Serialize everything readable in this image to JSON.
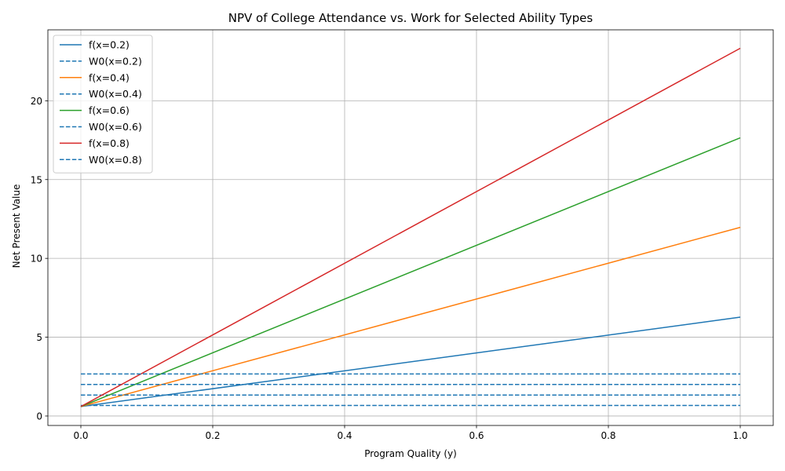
{
  "chart_data": {
    "type": "line",
    "title": "NPV of College Attendance vs. Work for Selected Ability Types",
    "xlabel": "Program Quality (y)",
    "ylabel": "Net Present Value",
    "xlim": [
      -0.05,
      1.05
    ],
    "ylim": [
      -0.6,
      24.5
    ],
    "xticks": [
      0.0,
      0.2,
      0.4,
      0.6,
      0.8,
      1.0
    ],
    "xtick_labels": [
      "0.0",
      "0.2",
      "0.4",
      "0.6",
      "0.8",
      "1.0"
    ],
    "yticks": [
      0,
      5,
      10,
      15,
      20
    ],
    "ytick_labels": [
      "0",
      "5",
      "10",
      "15",
      "20"
    ],
    "grid": true,
    "legend_position": "top-left",
    "series": [
      {
        "name": "f(x=0.2)",
        "style": "solid",
        "color": "#1f77b4",
        "x": [
          0.0,
          1.0
        ],
        "y": [
          0.6,
          6.27
        ]
      },
      {
        "name": "W0(x=0.2)",
        "style": "dashed",
        "color": "#1f77b4",
        "x": [
          0.0,
          1.0
        ],
        "y": [
          0.67,
          0.67
        ]
      },
      {
        "name": "f(x=0.4)",
        "style": "solid",
        "color": "#ff7f0e",
        "x": [
          0.0,
          1.0
        ],
        "y": [
          0.6,
          11.97
        ]
      },
      {
        "name": "W0(x=0.4)",
        "style": "dashed",
        "color": "#1f77b4",
        "x": [
          0.0,
          1.0
        ],
        "y": [
          1.33,
          1.33
        ]
      },
      {
        "name": "f(x=0.6)",
        "style": "solid",
        "color": "#2ca02c",
        "x": [
          0.0,
          1.0
        ],
        "y": [
          0.6,
          17.65
        ]
      },
      {
        "name": "W0(x=0.6)",
        "style": "dashed",
        "color": "#1f77b4",
        "x": [
          0.0,
          1.0
        ],
        "y": [
          2.0,
          2.0
        ]
      },
      {
        "name": "f(x=0.8)",
        "style": "solid",
        "color": "#d62728",
        "x": [
          0.0,
          1.0
        ],
        "y": [
          0.6,
          23.33
        ]
      },
      {
        "name": "W0(x=0.8)",
        "style": "dashed",
        "color": "#1f77b4",
        "x": [
          0.0,
          1.0
        ],
        "y": [
          2.67,
          2.67
        ]
      }
    ]
  }
}
